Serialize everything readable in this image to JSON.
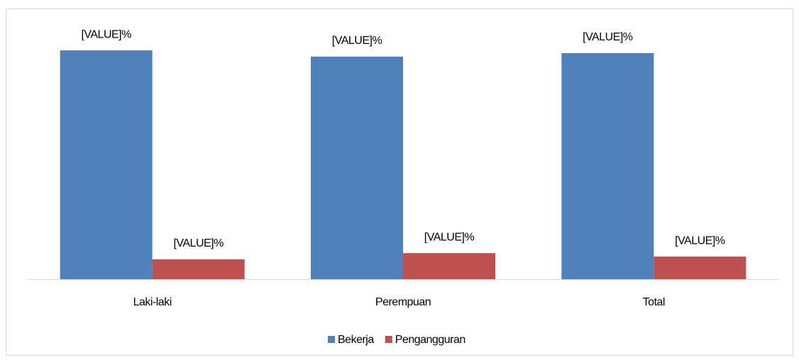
{
  "chart_data": {
    "type": "bar",
    "categories": [
      "Laki-laki",
      "Perempuan",
      "Total"
    ],
    "series": [
      {
        "name": "Bekerja",
        "color": "#4f81bd",
        "values": [
          92.0,
          89.5,
          90.9
        ],
        "value_labels": [
          "[VALUE]%",
          "[VALUE]%",
          "[VALUE]%"
        ]
      },
      {
        "name": "Pengangguran",
        "color": "#c0504d",
        "values": [
          8.0,
          10.5,
          9.1
        ],
        "value_labels": [
          "[VALUE]%",
          "[VALUE]%",
          "[VALUE]%"
        ]
      }
    ]
  }
}
